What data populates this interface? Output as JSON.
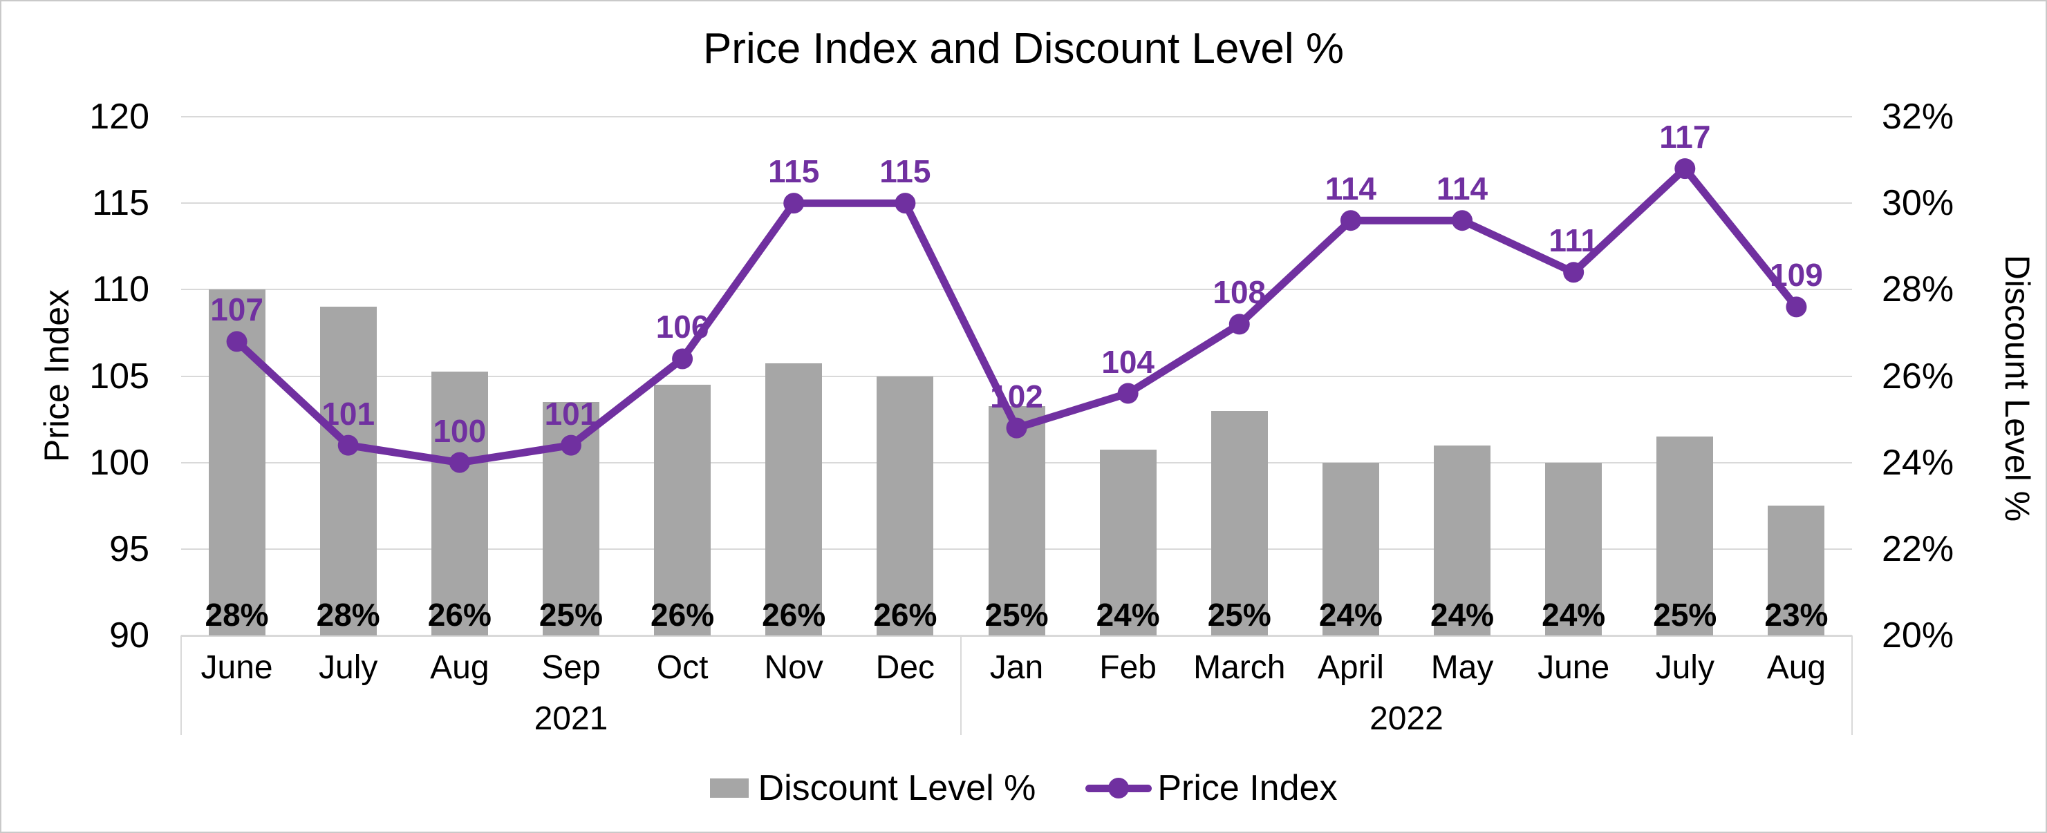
{
  "chart_data": {
    "type": "combo",
    "title": "Price Index and Discount Level %",
    "categories": [
      "June",
      "July",
      "Aug",
      "Sep",
      "Oct",
      "Nov",
      "Dec",
      "Jan",
      "Feb",
      "March",
      "April",
      "May",
      "June",
      "July",
      "Aug"
    ],
    "year_groups": [
      {
        "label": "2021",
        "span": 7
      },
      {
        "label": "2022",
        "span": 8
      }
    ],
    "series": [
      {
        "name": "Discount Level %",
        "type": "bar",
        "axis": "right",
        "color": "#a6a6a6",
        "values": [
          28.0,
          27.6,
          26.1,
          25.4,
          25.8,
          26.3,
          26.0,
          25.3,
          24.3,
          25.2,
          24.0,
          24.4,
          24.0,
          24.6,
          23.0
        ],
        "labels": [
          "28%",
          "28%",
          "26%",
          "25%",
          "26%",
          "26%",
          "26%",
          "25%",
          "24%",
          "25%",
          "24%",
          "24%",
          "24%",
          "25%",
          "23%"
        ]
      },
      {
        "name": "Price Index",
        "type": "line",
        "axis": "left",
        "color": "#7030a0",
        "values": [
          107,
          101,
          100,
          101,
          106,
          115,
          115,
          102,
          104,
          108,
          114,
          114,
          111,
          117,
          109
        ],
        "labels": [
          "107",
          "101",
          "100",
          "101",
          "106",
          "115",
          "115",
          "102",
          "104",
          "108",
          "114",
          "114",
          "111",
          "117",
          "109"
        ]
      }
    ],
    "left_axis": {
      "title": "Price Index",
      "min": 90,
      "max": 120,
      "step": 5,
      "ticks": [
        "120",
        "115",
        "110",
        "105",
        "100",
        "95",
        "90"
      ]
    },
    "right_axis": {
      "title": "Discount Level %",
      "min": 20,
      "max": 32,
      "step": 2,
      "ticks": [
        "32%",
        "30%",
        "28%",
        "26%",
        "24%",
        "22%",
        "20%"
      ]
    },
    "legend_position": "bottom",
    "grid": true,
    "colors": {
      "bar": "#a6a6a6",
      "line": "#7030a0",
      "gridline": "#d9d9d9",
      "text": "#000000"
    }
  }
}
